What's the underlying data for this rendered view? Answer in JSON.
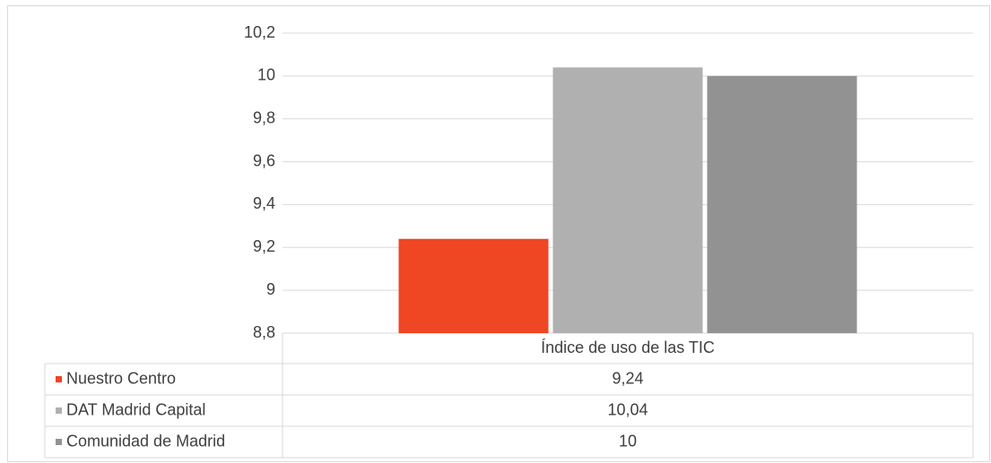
{
  "chart_data": {
    "type": "bar",
    "categories": [
      "Índice de uso de las TIC"
    ],
    "series": [
      {
        "name": "Nuestro Centro",
        "color": "#ef4623",
        "values": [
          9.24
        ],
        "value_labels": [
          "9,24"
        ]
      },
      {
        "name": "DAT Madrid Capital",
        "color": "#b0b0b0",
        "values": [
          10.04
        ],
        "value_labels": [
          "10,04"
        ]
      },
      {
        "name": "Comunidad de Madrid",
        "color": "#929292",
        "values": [
          10
        ],
        "value_labels": [
          "10"
        ]
      }
    ],
    "ylim": [
      8.8,
      10.2
    ],
    "yticks": [
      {
        "value": 8.8,
        "label": "8,8"
      },
      9,
      {
        "value": 9.2,
        "label": "9,2"
      },
      {
        "value": 9.4,
        "label": "9,4"
      },
      {
        "value": 9.6,
        "label": "9,6"
      },
      {
        "value": 9.8,
        "label": "9,8"
      },
      10,
      {
        "value": 10.2,
        "label": "10,2"
      }
    ],
    "grid": true
  }
}
